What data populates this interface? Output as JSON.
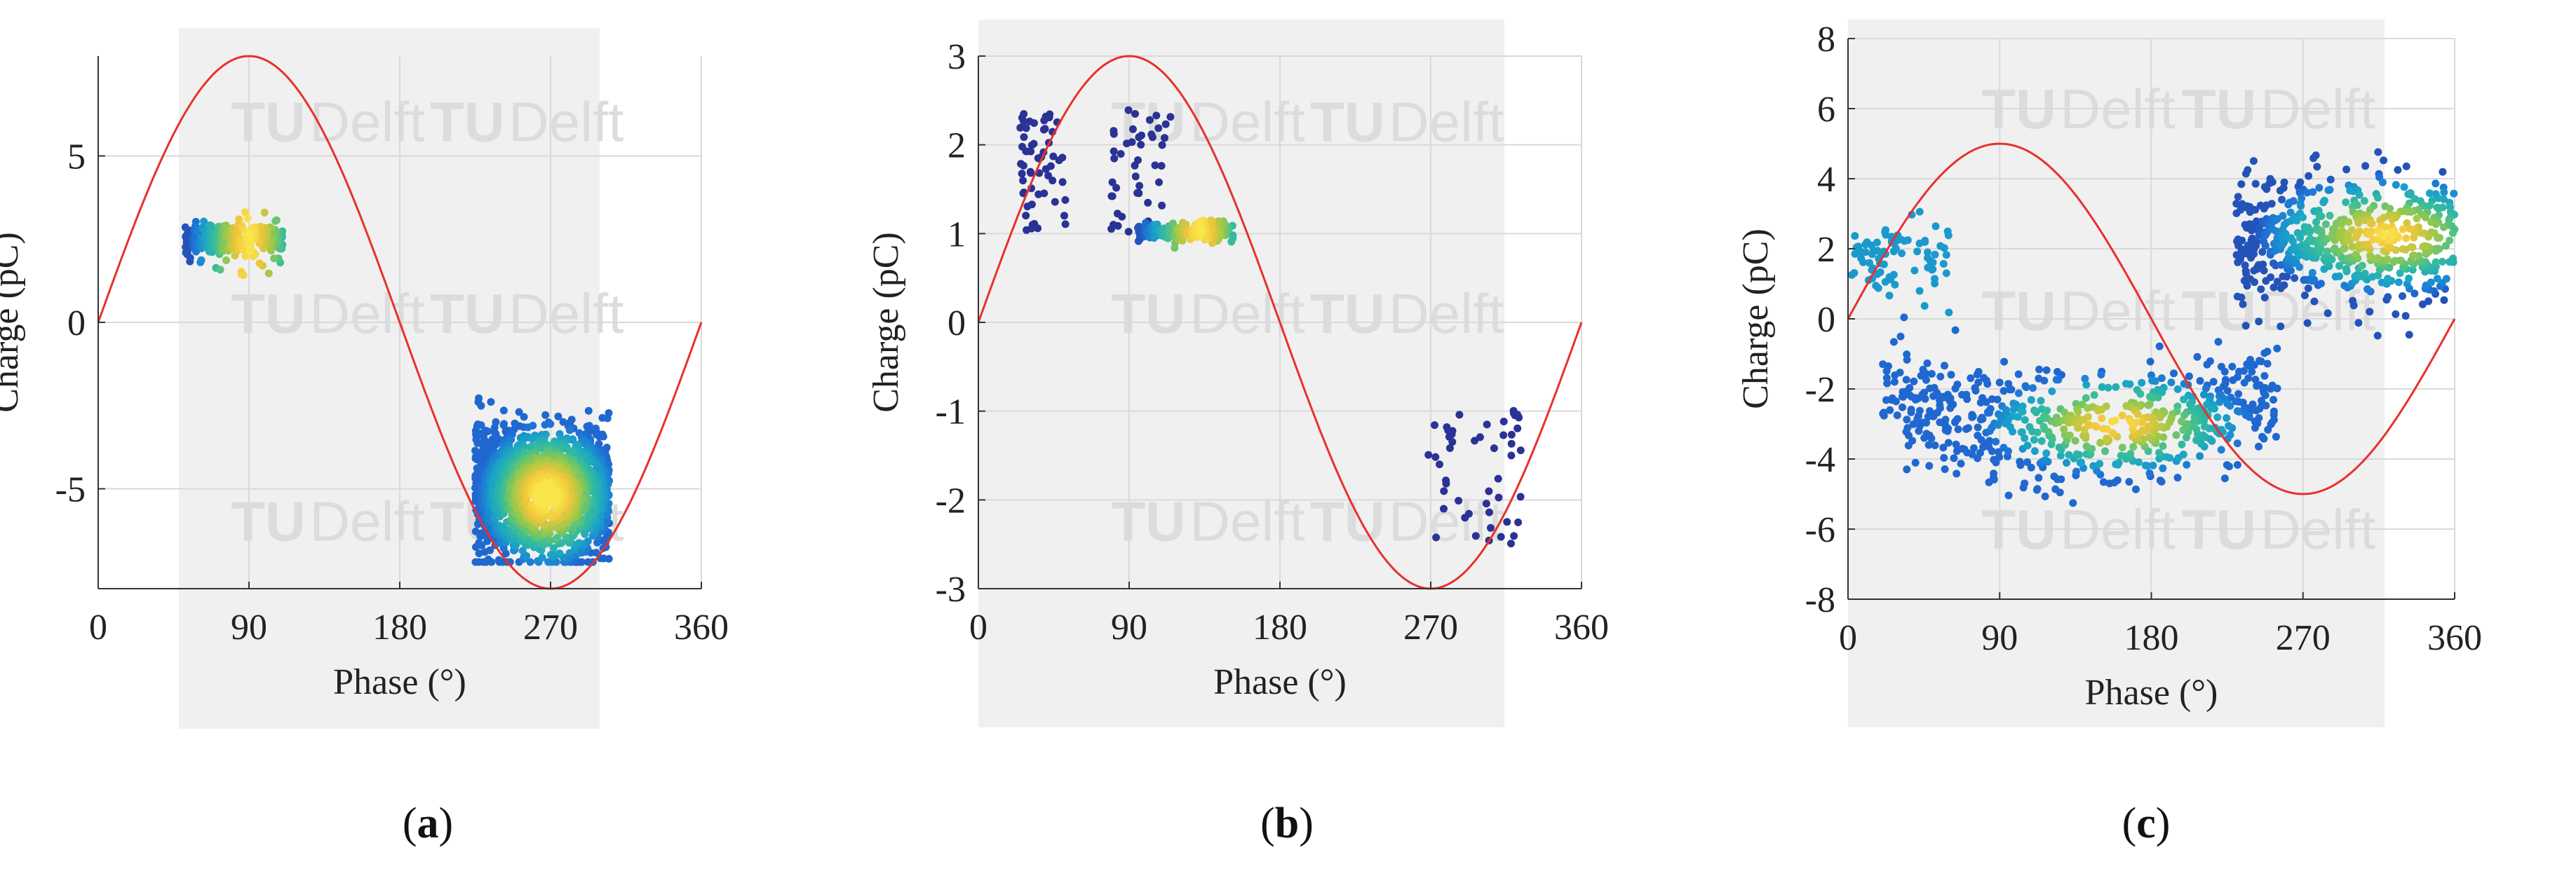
{
  "chart_data": [
    {
      "type": "scatter",
      "caption": "a",
      "xlabel": "Phase (°)",
      "ylabel": "Charge (pC)",
      "xlim": [
        0,
        360
      ],
      "ylim": [
        -8,
        8
      ],
      "xticks": [
        "0",
        "90",
        "180",
        "270",
        "360"
      ],
      "yticks": [
        "5",
        "0",
        "-5"
      ],
      "ytick_values": [
        5,
        0,
        -5
      ],
      "grid": true,
      "watermark": [
        "TU",
        "Delft"
      ],
      "reference_sine_amplitude": 8,
      "sine_color": "#e8312a",
      "clusters": [
        {
          "phase_range": [
            52,
            110
          ],
          "charge_mean": 2.5,
          "charge_spread": 0.25,
          "outlier_range": [
            1.4,
            3.4
          ],
          "density_peak_phase": 90,
          "count": 320
        },
        {
          "phase_range": [
            225,
            305
          ],
          "charge_range": [
            -7.2,
            -1.2
          ],
          "density_peak_phase": 268,
          "density_peak_charge": -5.2,
          "count": 1600
        }
      ]
    },
    {
      "type": "scatter",
      "caption": "b",
      "xlabel": "Phase (°)",
      "ylabel": "Charge (pC)",
      "xlim": [
        0,
        360
      ],
      "ylim": [
        -3,
        3
      ],
      "xticks": [
        "0",
        "90",
        "180",
        "270",
        "360"
      ],
      "yticks": [
        "3",
        "2",
        "1",
        "0",
        "-1",
        "-2",
        "-3"
      ],
      "ytick_values": [
        3,
        2,
        1,
        0,
        -1,
        -2,
        -3
      ],
      "grid": true,
      "watermark": [
        "TU",
        "Delft"
      ],
      "reference_sine_amplitude": 3,
      "sine_color": "#e8312a",
      "clusters": [
        {
          "phase_range": [
            25,
            52
          ],
          "charge_range": [
            1.0,
            2.4
          ],
          "count": 60
        },
        {
          "phase_range": [
            78,
            115
          ],
          "charge_range": [
            1.0,
            2.4
          ],
          "count": 45
        },
        {
          "phase_range": [
            95,
            152
          ],
          "charge_mean": 1.02,
          "charge_spread": 0.05,
          "density_peak_phase": 132,
          "count": 200
        },
        {
          "phase_range": [
            268,
            325
          ],
          "charge_range": [
            -2.5,
            -0.9
          ],
          "count": 50
        }
      ]
    },
    {
      "type": "scatter",
      "caption": "c",
      "xlabel": "Phase (°)",
      "ylabel": "Charge (pC)",
      "xlim": [
        0,
        360
      ],
      "ylim": [
        -8,
        8
      ],
      "xticks": [
        "0",
        "90",
        "180",
        "270",
        "360"
      ],
      "yticks": [
        "8",
        "6",
        "4",
        "2",
        "0",
        "-2",
        "-4",
        "-6",
        "-8"
      ],
      "ytick_values": [
        8,
        6,
        4,
        2,
        0,
        -2,
        -4,
        -6,
        -8
      ],
      "grid": true,
      "watermark": [
        "TU",
        "Delft"
      ],
      "reference_sine_amplitude": 5,
      "sine_color": "#e8312a",
      "clusters": [
        {
          "phase_range": [
            0,
            60
          ],
          "charge_mean": 1.6,
          "charge_spread": 0.6,
          "count": 80
        },
        {
          "phase_range": [
            20,
            255
          ],
          "charge_center_curve": "negative-half",
          "charge_mean": -2.2,
          "charge_spread": 0.8,
          "density_peak_phase": 160,
          "density_peak_charge": -3.0,
          "count": 650
        },
        {
          "phase_range": [
            230,
            360
          ],
          "charge_mean": 2.2,
          "charge_spread": 0.9,
          "density_peak_phase": 320,
          "density_peak_charge": 2.4,
          "count": 600
        }
      ]
    }
  ],
  "colormap": [
    "#2c2a8c",
    "#1f6fd6",
    "#1aa3c9",
    "#36bd9a",
    "#98c94a",
    "#f0c63a",
    "#f9e64b"
  ],
  "captions": {
    "a": "a",
    "b": "b",
    "c": "c"
  }
}
